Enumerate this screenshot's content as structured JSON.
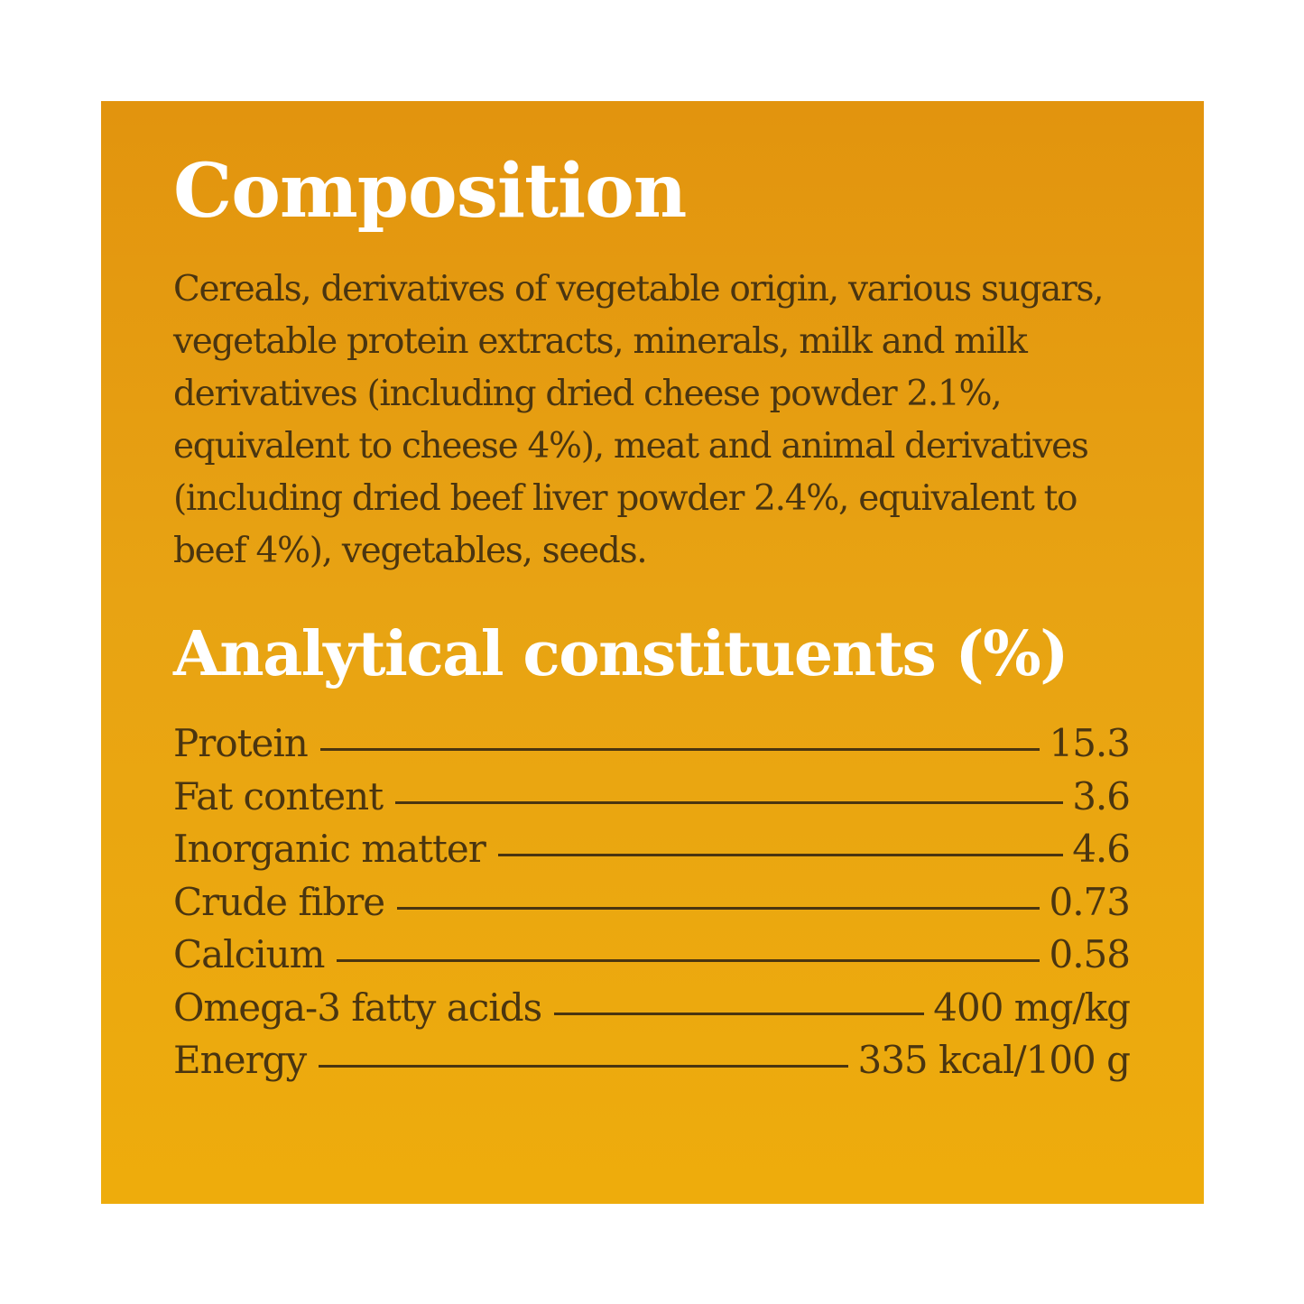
{
  "composition": {
    "heading": "Composition",
    "text": "Cereals, derivatives of vegetable origin, various sugars, vegetable protein extracts, minerals, milk and milk derivatives (including dried cheese powder 2.1%, equivalent to cheese 4%), meat and animal derivatives (including dried beef liver powder 2.4%, equivalent to beef 4%), vegetables, seeds."
  },
  "analytical": {
    "heading": "Analytical constituents (%)",
    "rows": [
      {
        "name": "Protein",
        "value": "15.3"
      },
      {
        "name": "Fat content",
        "value": "3.6"
      },
      {
        "name": "Inorganic matter",
        "value": "4.6"
      },
      {
        "name": "Crude fibre",
        "value": "0.73"
      },
      {
        "name": "Calcium",
        "value": "0.58"
      },
      {
        "name": "Omega-3 fatty acids",
        "value": "400 mg/kg"
      },
      {
        "name": "Energy",
        "value": "335 kcal/100 g"
      }
    ]
  },
  "colors": {
    "background_top": "#e2940e",
    "background_bottom": "#eeac0c",
    "heading": "#ffffff",
    "body_text": "#4a3510"
  }
}
